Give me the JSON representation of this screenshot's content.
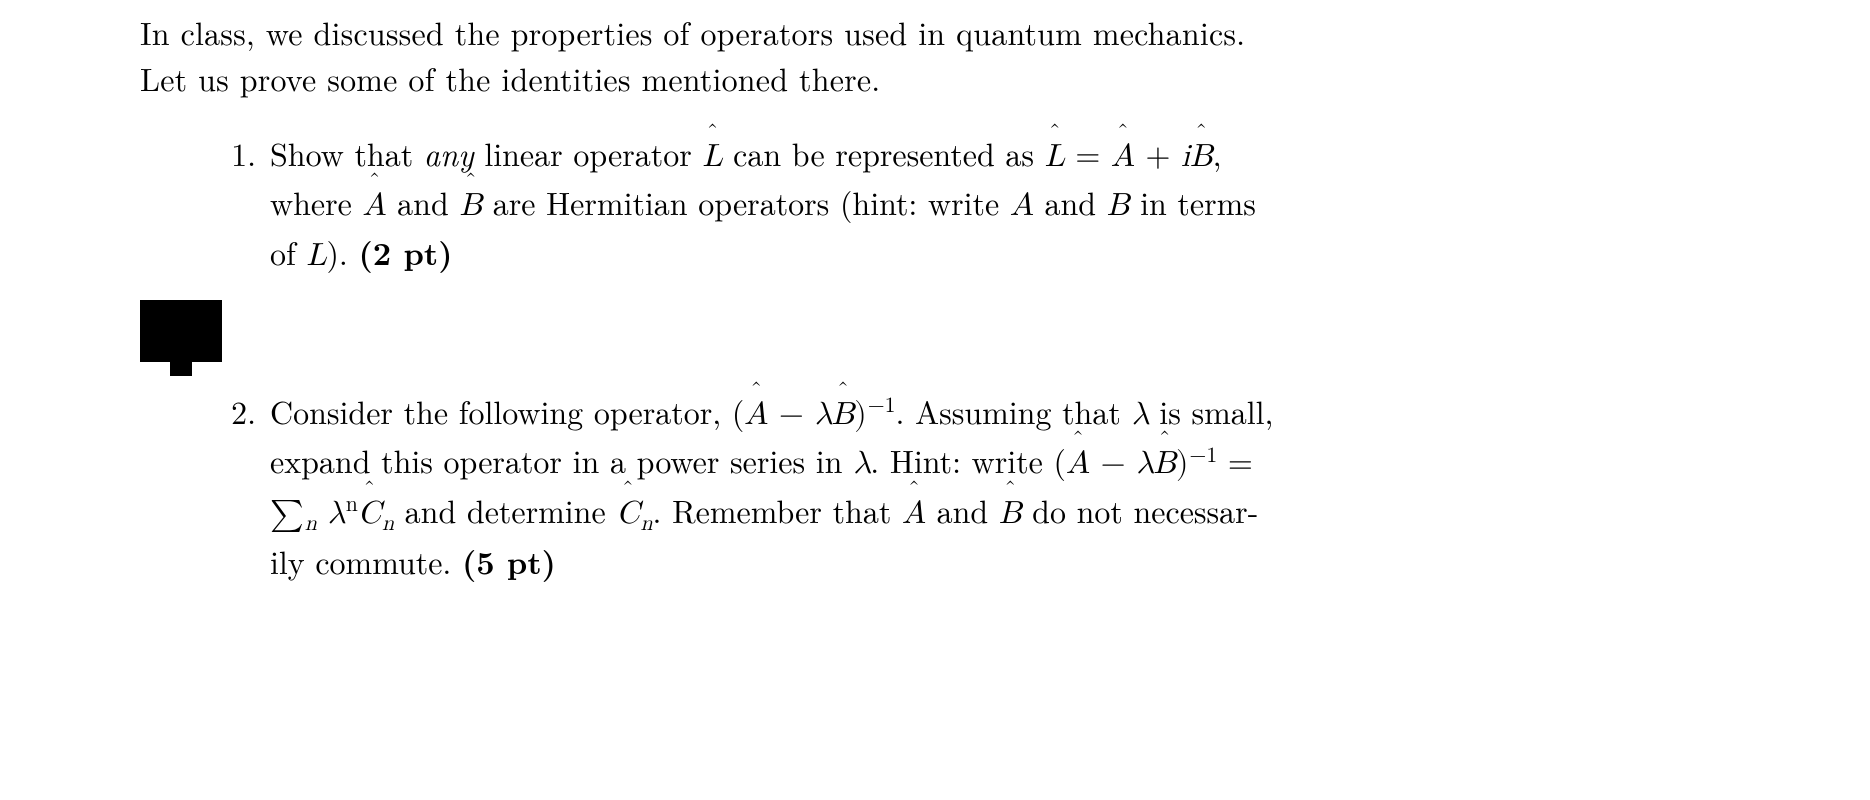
{
  "intro_line1": "In class, we discussed the properties of operators used in quantum mechanics.",
  "intro_line2": "Let us prove some of the identities mentioned there.",
  "items": [
    {
      "num": "1.",
      "text_pre": "Show that ",
      "any": "any",
      "text_mid1": " linear operator ",
      "op_L": "L",
      "text_mid2": " can be represented as ",
      "op_L2": "L",
      "eq": " = ",
      "op_A": "A",
      "plus": " + ",
      "i": "i",
      "op_B": "B",
      "comma": ",",
      "line2a": "where ",
      "op_A2": "A",
      "and": " and ",
      "op_B2": "B",
      "line2b": " are Hermitian operators (hint: write ",
      "A_plain": "A",
      "and2": " and ",
      "B_plain": "B",
      "line2c": " in terms",
      "line3a": "of ",
      "L_plain": "L",
      "line3b": "). ",
      "pts": "(2 pt)"
    },
    {
      "num": "2.",
      "t1": "Consider the following operator, (",
      "op_A": "A",
      "minus1": " − ",
      "lam1": "λ",
      "op_B": "B",
      "paren_inv1": ")",
      "inv1": "−1",
      "t2": ". Assuming that ",
      "lam2": "λ",
      "t3": " is small,",
      "t4": "expand this operator in a power series in ",
      "lam3": "λ",
      "t5": ". Hint: write (",
      "op_A2": "A",
      "minus2": " − ",
      "lam4": "λ",
      "op_B2": "B",
      "paren_inv2": ")",
      "inv2": "−1",
      "eq": " =",
      "sigma": "∑",
      "sub_n": "n",
      "sp": " ",
      "lam5": "λ",
      "sup_n": "n",
      "op_C": "C",
      "sub_n2": "n",
      "t6": " and determine ",
      "op_C2": "C",
      "sub_n3": "n",
      "t7": ". Remember that ",
      "op_A3": "A",
      "and": " and ",
      "op_B3": "B",
      "t8": " do not necessar-",
      "t9": "ily commute. ",
      "pts": "(5 pt)"
    }
  ],
  "colors": {
    "text": "#000000",
    "background": "#ffffff"
  },
  "font": {
    "family": "Computer Modern / Latin Modern (serif)",
    "size_pt_estimate": 24
  }
}
